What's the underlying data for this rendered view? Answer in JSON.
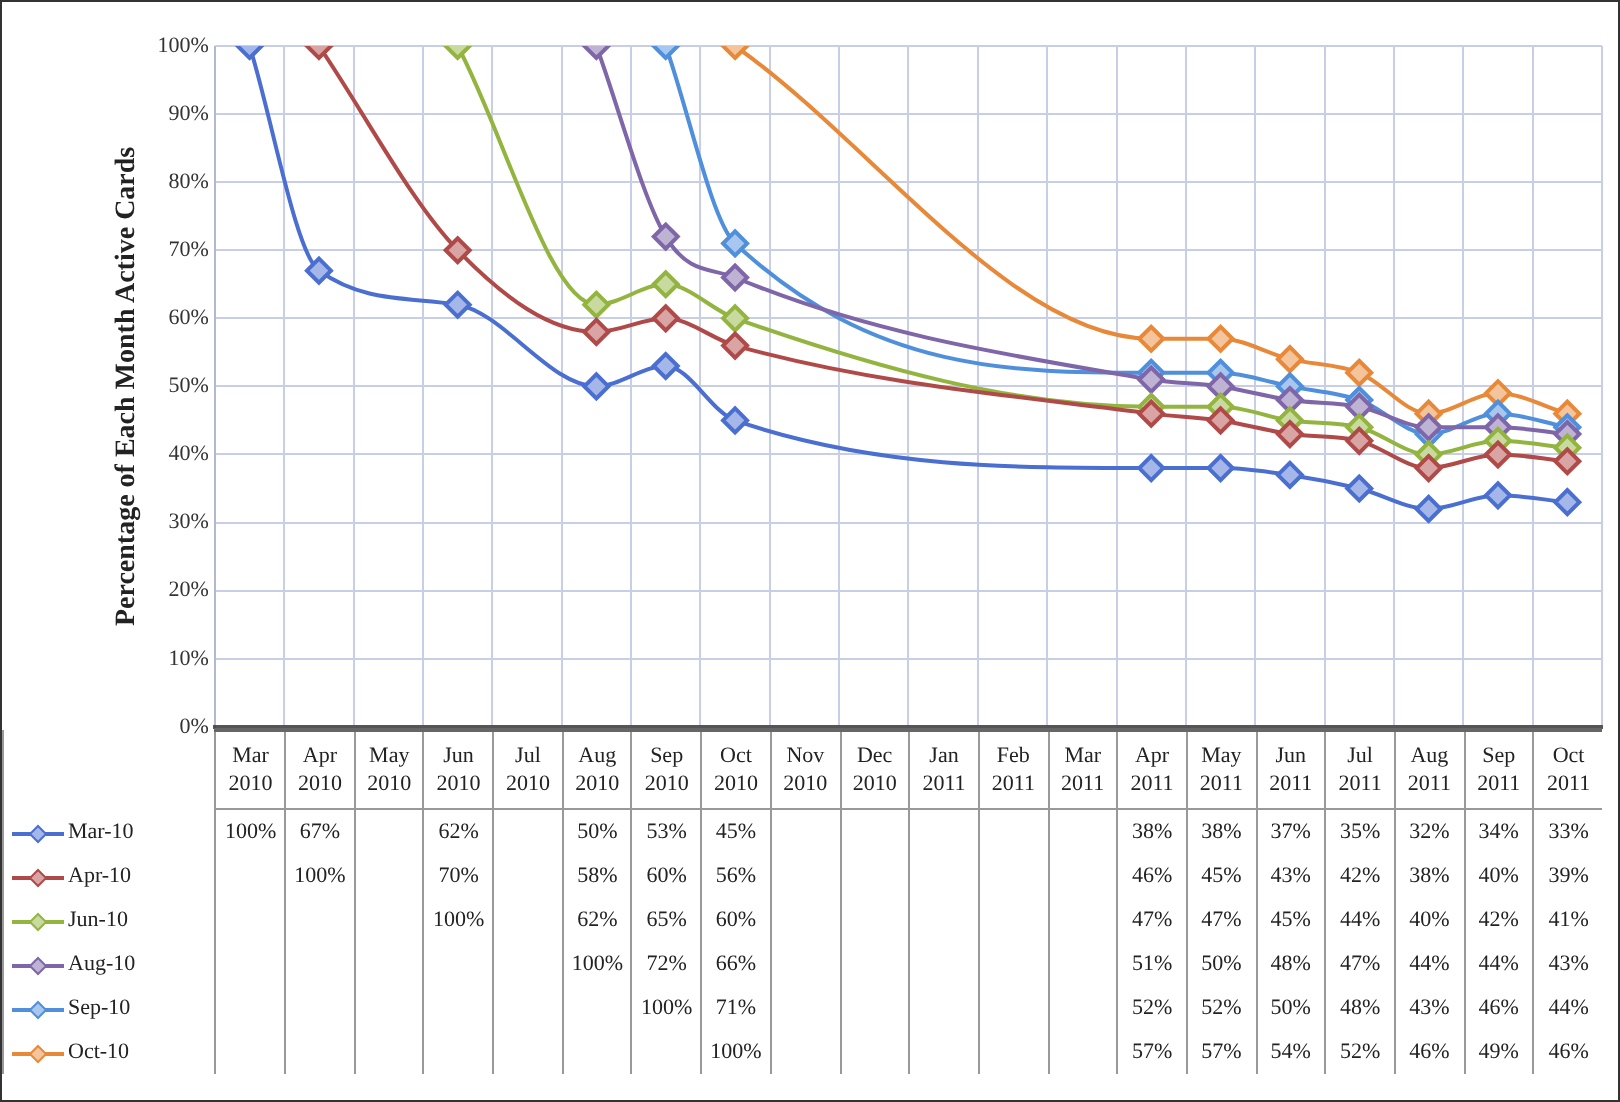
{
  "chart_data": {
    "type": "line",
    "ylabel": "Percentage of Each Month Active Cards",
    "categories": [
      "Mar 2010",
      "Apr 2010",
      "May 2010",
      "Jun 2010",
      "Jul 2010",
      "Aug 2010",
      "Sep 2010",
      "Oct 2010",
      "Nov 2010",
      "Dec 2010",
      "Jan 2011",
      "Feb 2011",
      "Mar 2011",
      "Apr 2011",
      "May 2011",
      "Jun 2011",
      "Jul 2011",
      "Aug 2011",
      "Sep 2011",
      "Oct 2011"
    ],
    "ylim": [
      0,
      100
    ],
    "yticks": [
      {
        "value": 0,
        "label": "0%"
      },
      {
        "value": 10,
        "label": "10%"
      },
      {
        "value": 20,
        "label": "20%"
      },
      {
        "value": 30,
        "label": "30%"
      },
      {
        "value": 40,
        "label": "40%"
      },
      {
        "value": 50,
        "label": "50%"
      },
      {
        "value": 60,
        "label": "60%"
      },
      {
        "value": 70,
        "label": "70%"
      },
      {
        "value": 80,
        "label": "80%"
      },
      {
        "value": 90,
        "label": "90%"
      },
      {
        "value": 100,
        "label": "100%"
      }
    ],
    "grid": true,
    "legend": "bottom",
    "marker": "diamond",
    "series": [
      {
        "name": "Mar-10",
        "color": "#4a6fd0",
        "values": [
          100,
          67,
          null,
          62,
          null,
          50,
          53,
          45,
          null,
          null,
          null,
          null,
          null,
          38,
          38,
          37,
          35,
          32,
          34,
          33
        ],
        "value_labels": [
          "100%",
          "67%",
          null,
          "62%",
          null,
          "50%",
          "53%",
          "45%",
          null,
          null,
          null,
          null,
          null,
          "38%",
          "38%",
          "37%",
          "35%",
          "32%",
          "34%",
          "33%"
        ]
      },
      {
        "name": "Apr-10",
        "color": "#b04a48",
        "values": [
          null,
          100,
          null,
          70,
          null,
          58,
          60,
          56,
          null,
          null,
          null,
          null,
          null,
          46,
          45,
          43,
          42,
          38,
          40,
          39
        ],
        "value_labels": [
          null,
          "100%",
          null,
          "70%",
          null,
          "58%",
          "60%",
          "56%",
          null,
          null,
          null,
          null,
          null,
          "46%",
          "45%",
          "43%",
          "42%",
          "38%",
          "40%",
          "39%"
        ]
      },
      {
        "name": "Jun-10",
        "color": "#93b540",
        "values": [
          null,
          null,
          null,
          100,
          null,
          62,
          65,
          60,
          null,
          null,
          null,
          null,
          null,
          47,
          47,
          45,
          44,
          40,
          42,
          41
        ],
        "value_labels": [
          null,
          null,
          null,
          "100%",
          null,
          "62%",
          "65%",
          "60%",
          null,
          null,
          null,
          null,
          null,
          "47%",
          "47%",
          "45%",
          "44%",
          "40%",
          "42%",
          "41%"
        ]
      },
      {
        "name": "Aug-10",
        "color": "#7e66a8",
        "values": [
          null,
          null,
          null,
          null,
          null,
          100,
          72,
          66,
          null,
          null,
          null,
          null,
          null,
          51,
          50,
          48,
          47,
          44,
          44,
          43
        ],
        "value_labels": [
          null,
          null,
          null,
          null,
          null,
          "100%",
          "72%",
          "66%",
          null,
          null,
          null,
          null,
          null,
          "51%",
          "50%",
          "48%",
          "47%",
          "44%",
          "44%",
          "43%"
        ]
      },
      {
        "name": "Sep-10",
        "color": "#4f8fdc",
        "values": [
          null,
          null,
          null,
          null,
          null,
          null,
          100,
          71,
          null,
          null,
          null,
          null,
          null,
          52,
          52,
          50,
          48,
          43,
          46,
          44
        ],
        "value_labels": [
          null,
          null,
          null,
          null,
          null,
          null,
          "100%",
          "71%",
          null,
          null,
          null,
          null,
          null,
          "52%",
          "52%",
          "50%",
          "48%",
          "43%",
          "46%",
          "44%"
        ]
      },
      {
        "name": "Oct-10",
        "color": "#e8893a",
        "values": [
          null,
          null,
          null,
          null,
          null,
          null,
          null,
          100,
          null,
          null,
          null,
          null,
          null,
          57,
          57,
          54,
          52,
          46,
          49,
          46
        ],
        "value_labels": [
          null,
          null,
          null,
          null,
          null,
          null,
          null,
          "100%",
          null,
          null,
          null,
          null,
          null,
          "57%",
          "57%",
          "54%",
          "52%",
          "46%",
          "49%",
          "46%"
        ]
      }
    ]
  }
}
